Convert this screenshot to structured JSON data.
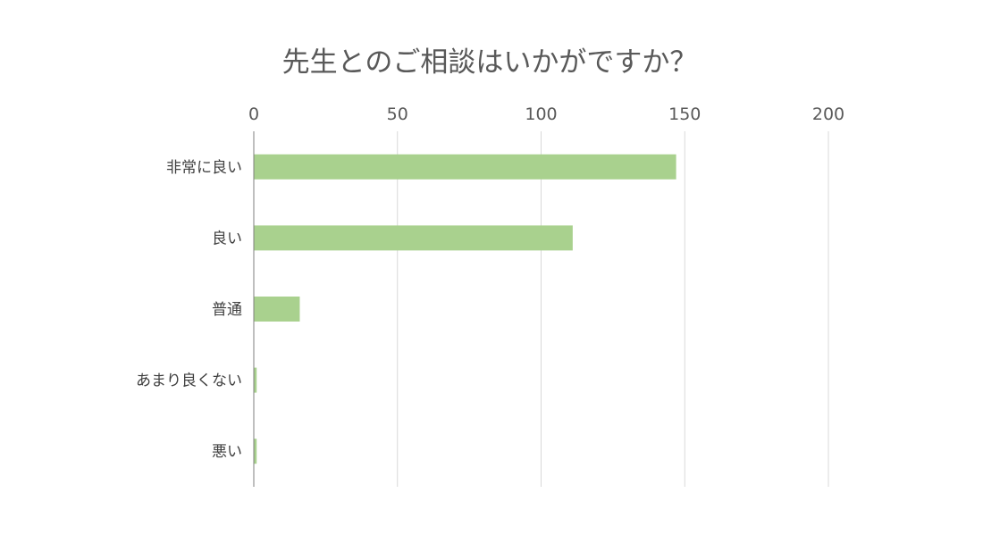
{
  "chart_data": {
    "type": "bar",
    "orientation": "horizontal",
    "title": "先生とのご相談はいかがですか？",
    "categories": [
      "非常に良い",
      "良い",
      "普通",
      "あまり良くない",
      "悪い"
    ],
    "values": [
      147,
      111,
      16,
      1,
      1
    ],
    "xlim": [
      0,
      200
    ],
    "x_ticks": [
      0,
      50,
      100,
      150,
      200
    ],
    "x_axis_position": "top",
    "grid": true,
    "legend": "none",
    "xlabel": "",
    "ylabel": "",
    "colors": {
      "bar": "#a9d18e",
      "grid": "#d9d9d9",
      "axis": "#7f7f7f",
      "text": "#595959"
    }
  }
}
